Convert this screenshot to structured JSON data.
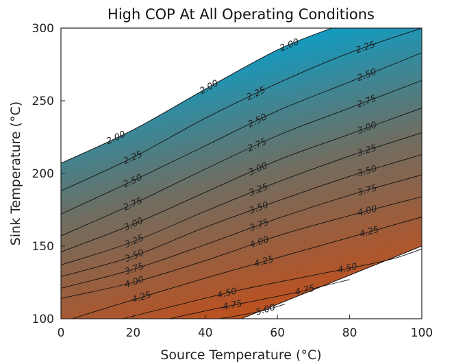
{
  "chart_data": {
    "type": "contour",
    "title": "High COP At All Operating Conditions",
    "xlabel": "Source Temperature (°C)",
    "ylabel": "Sink Temperature (°C)",
    "xlim": [
      0,
      100
    ],
    "ylim": [
      100,
      300
    ],
    "xticks": [
      "0",
      "20",
      "40",
      "60",
      "80",
      "100"
    ],
    "yticks": [
      "100",
      "150",
      "200",
      "250",
      "300"
    ],
    "domain": {
      "upper_boundary": [
        [
          0,
          207
        ],
        [
          20,
          230
        ],
        [
          40,
          258
        ],
        [
          60,
          285
        ],
        [
          75,
          300
        ]
      ],
      "lower_boundary": [
        [
          50,
          100
        ],
        [
          100,
          150
        ]
      ]
    },
    "color_low": "#C44E1A",
    "color_mid": "#6E6E62",
    "color_high": "#00A4D4",
    "levels": [
      {
        "value": 2.0,
        "label": "2.00",
        "points": [
          [
            0,
            207
          ],
          [
            20,
            230
          ],
          [
            40,
            258
          ],
          [
            60,
            285
          ],
          [
            75,
            300
          ]
        ]
      },
      {
        "value": 2.25,
        "label": "2.25",
        "points": [
          [
            0,
            188
          ],
          [
            20,
            211
          ],
          [
            40,
            238
          ],
          [
            60,
            262
          ],
          [
            80,
            283
          ],
          [
            100,
            300
          ]
        ]
      },
      {
        "value": 2.5,
        "label": "2.50",
        "points": [
          [
            0,
            172
          ],
          [
            20,
            195
          ],
          [
            40,
            219
          ],
          [
            60,
            243
          ],
          [
            80,
            263
          ],
          [
            100,
            283
          ]
        ]
      },
      {
        "value": 2.75,
        "label": "2.75",
        "points": [
          [
            0,
            157
          ],
          [
            20,
            179
          ],
          [
            40,
            203
          ],
          [
            60,
            226
          ],
          [
            80,
            245
          ],
          [
            100,
            264
          ]
        ]
      },
      {
        "value": 3.0,
        "label": "3.00",
        "points": [
          [
            0,
            146
          ],
          [
            20,
            165
          ],
          [
            40,
            187
          ],
          [
            60,
            209
          ],
          [
            80,
            227
          ],
          [
            100,
            245
          ]
        ]
      },
      {
        "value": 3.25,
        "label": "3.25",
        "points": [
          [
            0,
            137
          ],
          [
            20,
            153
          ],
          [
            40,
            174
          ],
          [
            60,
            194
          ],
          [
            80,
            212
          ],
          [
            100,
            228
          ]
        ]
      },
      {
        "value": 3.5,
        "label": "3.50",
        "points": [
          [
            0,
            129
          ],
          [
            20,
            143
          ],
          [
            40,
            163
          ],
          [
            60,
            181
          ],
          [
            80,
            198
          ],
          [
            100,
            213
          ]
        ]
      },
      {
        "value": 3.75,
        "label": "3.75",
        "points": [
          [
            0,
            121
          ],
          [
            20,
            134
          ],
          [
            40,
            151
          ],
          [
            60,
            169
          ],
          [
            80,
            185
          ],
          [
            100,
            199
          ]
        ]
      },
      {
        "value": 4.0,
        "label": "4.00",
        "points": [
          [
            0,
            114
          ],
          [
            20,
            125
          ],
          [
            40,
            140
          ],
          [
            60,
            157
          ],
          [
            80,
            171
          ],
          [
            100,
            184
          ]
        ]
      },
      {
        "value": 4.25,
        "label": "4.25",
        "points": [
          [
            3,
            100
          ],
          [
            20,
            113
          ],
          [
            40,
            128
          ],
          [
            60,
            142
          ],
          [
            80,
            156
          ],
          [
            100,
            170
          ]
        ]
      },
      {
        "value": 4.5,
        "label": "4.50",
        "points": [
          [
            17,
            100
          ],
          [
            30,
            108
          ],
          [
            50,
            120
          ],
          [
            70,
            130
          ],
          [
            90,
            140
          ],
          [
            100,
            148
          ]
        ]
      },
      {
        "value": 4.75,
        "label": "4.75",
        "points": [
          [
            30,
            100
          ],
          [
            45,
            108
          ],
          [
            65,
            118
          ],
          [
            80,
            127
          ]
        ]
      },
      {
        "value": 5.0,
        "label": "5.00",
        "points": [
          [
            44,
            100
          ],
          [
            55,
            105
          ],
          [
            62,
            110
          ]
        ]
      }
    ]
  }
}
